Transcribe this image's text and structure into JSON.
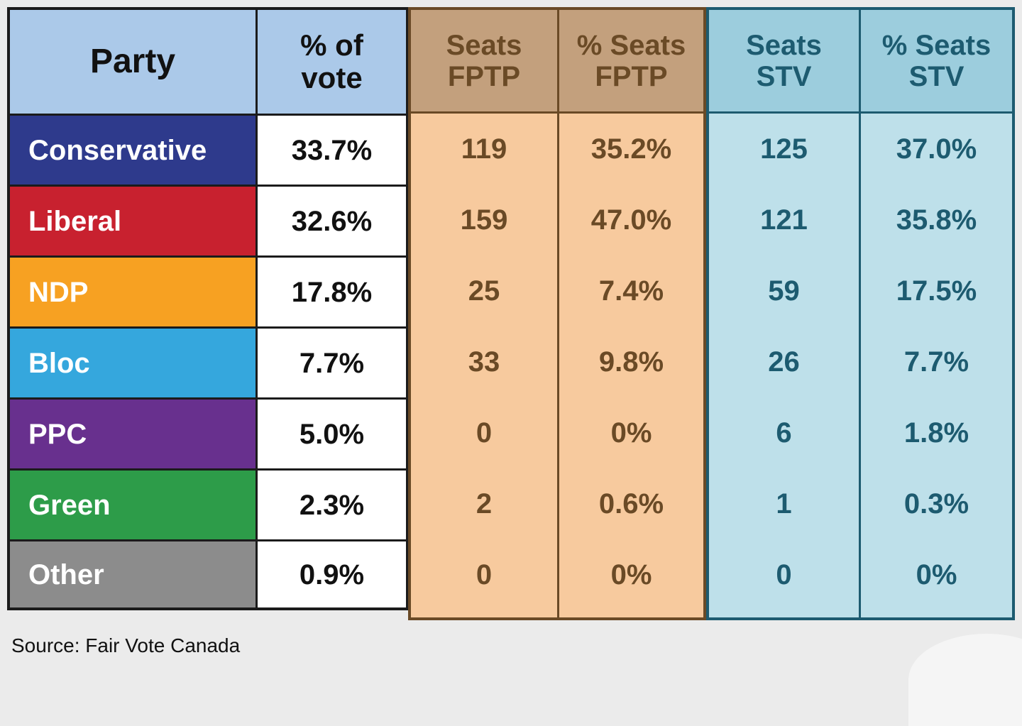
{
  "table": {
    "headers": {
      "party": "Party",
      "pct_vote": "% of\nvote",
      "seats_fptp": "Seats\nFPTP",
      "pct_seats_fptp": "% Seats\nFPTP",
      "seats_stv": "Seats\nSTV",
      "pct_seats_stv": "% Seats\nSTV"
    },
    "rows": [
      {
        "party": "Conservative",
        "color": "#2e3a8c",
        "pct_vote": "33.7%",
        "seats_fptp": "119",
        "pct_seats_fptp": "35.2%",
        "seats_stv": "125",
        "pct_seats_stv": "37.0%"
      },
      {
        "party": "Liberal",
        "color": "#c8212f",
        "pct_vote": "32.6%",
        "seats_fptp": "159",
        "pct_seats_fptp": "47.0%",
        "seats_stv": "121",
        "pct_seats_stv": "35.8%"
      },
      {
        "party": "NDP",
        "color": "#f7a122",
        "pct_vote": "17.8%",
        "seats_fptp": "25",
        "pct_seats_fptp": "7.4%",
        "seats_stv": "59",
        "pct_seats_stv": "17.5%"
      },
      {
        "party": "Bloc",
        "color": "#35a7dd",
        "pct_vote": "7.7%",
        "seats_fptp": "33",
        "pct_seats_fptp": "9.8%",
        "seats_stv": "26",
        "pct_seats_stv": "7.7%"
      },
      {
        "party": "PPC",
        "color": "#68308e",
        "pct_vote": "5.0%",
        "seats_fptp": "0",
        "pct_seats_fptp": "0%",
        "seats_stv": "6",
        "pct_seats_stv": "1.8%"
      },
      {
        "party": "Green",
        "color": "#2d9c49",
        "pct_vote": "2.3%",
        "seats_fptp": "2",
        "pct_seats_fptp": "0.6%",
        "seats_stv": "1",
        "pct_seats_stv": "0.3%"
      },
      {
        "party": "Other",
        "color": "#8c8c8c",
        "pct_vote": "0.9%",
        "seats_fptp": "0",
        "pct_seats_fptp": "0%",
        "seats_stv": "0",
        "pct_seats_stv": "0%"
      }
    ]
  },
  "source": "Source: Fair Vote Canada",
  "colors": {
    "header_party_bg": "#abc9e9",
    "fptp_header_bg": "#c3a07d",
    "fptp_cell_bg": "#f7ca9e",
    "fptp_text": "#6a4a26",
    "fptp_border": "#6a4a26",
    "stv_header_bg": "#9ccddd",
    "stv_cell_bg": "#bee0ea",
    "stv_text": "#1d5b70",
    "stv_border": "#1d5b70",
    "grid_line": "#1b1b1b",
    "page_bg": "#ebebeb"
  },
  "chart_data": {
    "type": "table",
    "title": "",
    "columns": [
      "Party",
      "% of vote",
      "Seats FPTP",
      "% Seats FPTP",
      "Seats STV",
      "% Seats STV"
    ],
    "rows": [
      [
        "Conservative",
        "33.7%",
        119,
        "35.2%",
        125,
        "37.0%"
      ],
      [
        "Liberal",
        "32.6%",
        159,
        "47.0%",
        121,
        "35.8%"
      ],
      [
        "NDP",
        "17.8%",
        25,
        "7.4%",
        59,
        "17.5%"
      ],
      [
        "Bloc",
        "7.7%",
        33,
        "9.8%",
        26,
        "7.7%"
      ],
      [
        "PPC",
        "5.0%",
        0,
        "0%",
        6,
        "1.8%"
      ],
      [
        "Green",
        "2.3%",
        2,
        "0.6%",
        1,
        "0.3%"
      ],
      [
        "Other",
        "0.9%",
        0,
        "0%",
        0,
        "0%"
      ]
    ],
    "source": "Source: Fair Vote Canada"
  }
}
